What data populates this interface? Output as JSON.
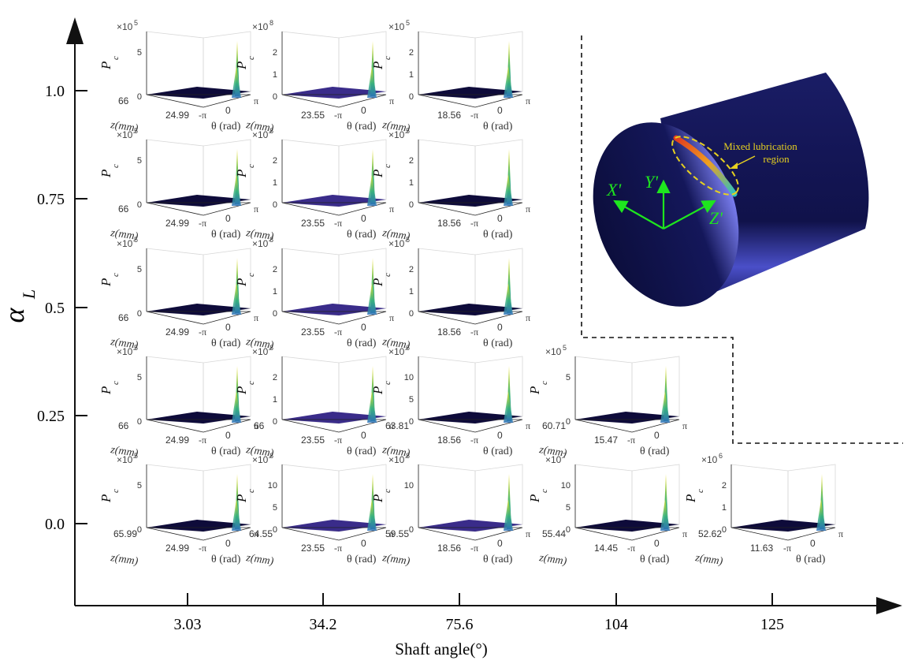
{
  "chart_data": {
    "type": "grid-of-3d-surface-plots",
    "xlabel": "Shaft angle(°)",
    "ylabel": "α",
    "ylabel_sub": "L",
    "x_ticks": [
      "3.03",
      "34.2",
      "75.6",
      "104",
      "125"
    ],
    "y_ticks": [
      "1.0",
      "0.75",
      "0.5",
      "0.25",
      "0.0"
    ],
    "subplot_axis_labels": {
      "z": "P",
      "z_sub": "c",
      "depth": "z(mm)",
      "width": "θ (rad)"
    },
    "theta_ticks": [
      "-π",
      "0",
      "π"
    ],
    "color_levels": {
      "floor_dark": "#0e0b3a",
      "floor_purple": "#3a2c8a",
      "peak_yellow": "#f3e22a",
      "peak_green": "#39b57a",
      "peak_blue": "#2a6fb8"
    },
    "rows": [
      {
        "alpha": "1.0",
        "cells": [
          {
            "shaft": "3.03",
            "exp": "5",
            "zticks": [
              "0",
              "5"
            ],
            "zmax": "66",
            "zmin": "24.99",
            "floor": "dark"
          },
          {
            "shaft": "34.2",
            "exp": "8",
            "zticks": [
              "0",
              "1",
              "2"
            ],
            "zmax": "",
            "zmin": "23.55",
            "floor": "purple"
          },
          {
            "shaft": "75.6",
            "exp": "5",
            "zticks": [
              "0",
              "1",
              "2"
            ],
            "zmax": "",
            "zmin": "18.56",
            "floor": "dark"
          }
        ]
      },
      {
        "alpha": "0.75",
        "cells": [
          {
            "shaft": "3.03",
            "exp": "5",
            "zticks": [
              "0",
              "5"
            ],
            "zmax": "66",
            "zmin": "24.99",
            "floor": "dark"
          },
          {
            "shaft": "34.2",
            "exp": "8",
            "zticks": [
              "0",
              "1",
              "2"
            ],
            "zmax": "",
            "zmin": "23.55",
            "floor": "purple"
          },
          {
            "shaft": "75.6",
            "exp": "5",
            "zticks": [
              "0",
              "1",
              "2"
            ],
            "zmax": "",
            "zmin": "18.56",
            "floor": "dark"
          }
        ]
      },
      {
        "alpha": "0.5",
        "cells": [
          {
            "shaft": "3.03",
            "exp": "5",
            "zticks": [
              "0",
              "5"
            ],
            "zmax": "66",
            "zmin": "24.99",
            "floor": "dark"
          },
          {
            "shaft": "34.2",
            "exp": "8",
            "zticks": [
              "0",
              "1",
              "2"
            ],
            "zmax": "",
            "zmin": "23.55",
            "floor": "purple"
          },
          {
            "shaft": "75.6",
            "exp": "5",
            "zticks": [
              "0",
              "1",
              "2"
            ],
            "zmax": "",
            "zmin": "18.56",
            "floor": "dark"
          }
        ]
      },
      {
        "alpha": "0.25",
        "cells": [
          {
            "shaft": "3.03",
            "exp": "5",
            "zticks": [
              "0",
              "5"
            ],
            "zmax": "66",
            "zmin": "24.99",
            "floor": "dark"
          },
          {
            "shaft": "34.2",
            "exp": "8",
            "zticks": [
              "0",
              "1",
              "2"
            ],
            "zmax": "66",
            "zmin": "23.55",
            "floor": "purple"
          },
          {
            "shaft": "75.6",
            "exp": "6",
            "zticks": [
              "0",
              "5",
              "10"
            ],
            "zmax": "63.81",
            "zmin": "18.56",
            "floor": "dark"
          },
          {
            "shaft": "104",
            "exp": "5",
            "zticks": [
              "0",
              "5"
            ],
            "zmax": "60.71",
            "zmin": "15.47",
            "floor": "dark"
          }
        ]
      },
      {
        "alpha": "0.0",
        "cells": [
          {
            "shaft": "3.03",
            "exp": "5",
            "zticks": [
              "0",
              "5"
            ],
            "zmax": "65.99",
            "zmin": "24.99",
            "floor": "dark"
          },
          {
            "shaft": "34.2",
            "exp": "8",
            "zticks": [
              "0",
              "5",
              "10"
            ],
            "zmax": "64.55",
            "zmin": "23.55",
            "floor": "purple"
          },
          {
            "shaft": "75.6",
            "exp": "8",
            "zticks": [
              "0",
              "10"
            ],
            "zmax": "59.55",
            "zmin": "18.56",
            "floor": "purple"
          },
          {
            "shaft": "104",
            "exp": "7",
            "zticks": [
              "0",
              "5",
              "10"
            ],
            "zmax": "55.44",
            "zmin": "14.45",
            "floor": "dark"
          },
          {
            "shaft": "125",
            "exp": "6",
            "zticks": [
              "0",
              "1",
              "2"
            ],
            "zmax": "52.62",
            "zmin": "11.63",
            "floor": "dark"
          }
        ]
      }
    ]
  },
  "inset": {
    "annotation_line1": "Mixed lubrication",
    "annotation_line2": "region",
    "axis_x": "X'",
    "axis_y": "Y'",
    "axis_z": "Z'",
    "cylinder_color": "#14164f",
    "highlight_color": "#6f74e8",
    "annotation_color": "#e6d020",
    "axis_color": "#1ee61e"
  }
}
